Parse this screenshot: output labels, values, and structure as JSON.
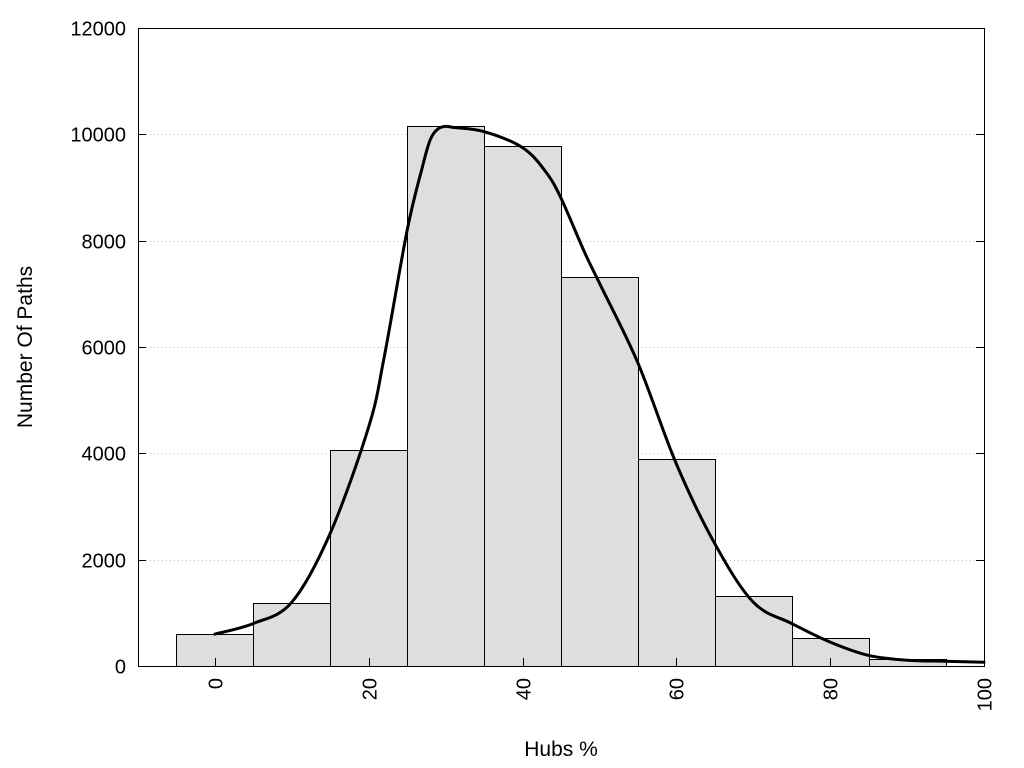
{
  "chart_data": {
    "type": "bar",
    "xlabel": "Hubs %",
    "ylabel": "Number Of Paths",
    "xlim": [
      -10,
      100
    ],
    "ylim": [
      0,
      12000
    ],
    "x_ticks": [
      0,
      20,
      40,
      60,
      80,
      100
    ],
    "y_ticks": [
      0,
      2000,
      4000,
      6000,
      8000,
      10000,
      12000
    ],
    "grid": "horizontal dotted",
    "bin_width": 10,
    "bins": [
      0,
      10,
      20,
      30,
      40,
      50,
      60,
      70,
      80,
      90
    ],
    "values": [
      600,
      1180,
      4070,
      10150,
      9780,
      7320,
      3890,
      1310,
      520,
      130
    ],
    "curve": {
      "x": [
        0,
        5,
        10,
        15,
        20,
        22,
        25,
        27,
        28,
        29,
        30,
        31,
        35,
        40,
        43,
        45,
        48,
        50,
        55,
        60,
        65,
        70,
        75,
        80,
        85,
        90,
        95,
        100
      ],
      "y": [
        600,
        800,
        1200,
        2500,
        4500,
        5800,
        8200,
        9400,
        9900,
        10100,
        10150,
        10130,
        10050,
        9750,
        9300,
        8800,
        7800,
        7200,
        5700,
        3800,
        2300,
        1200,
        800,
        450,
        200,
        110,
        90,
        70
      ]
    }
  }
}
